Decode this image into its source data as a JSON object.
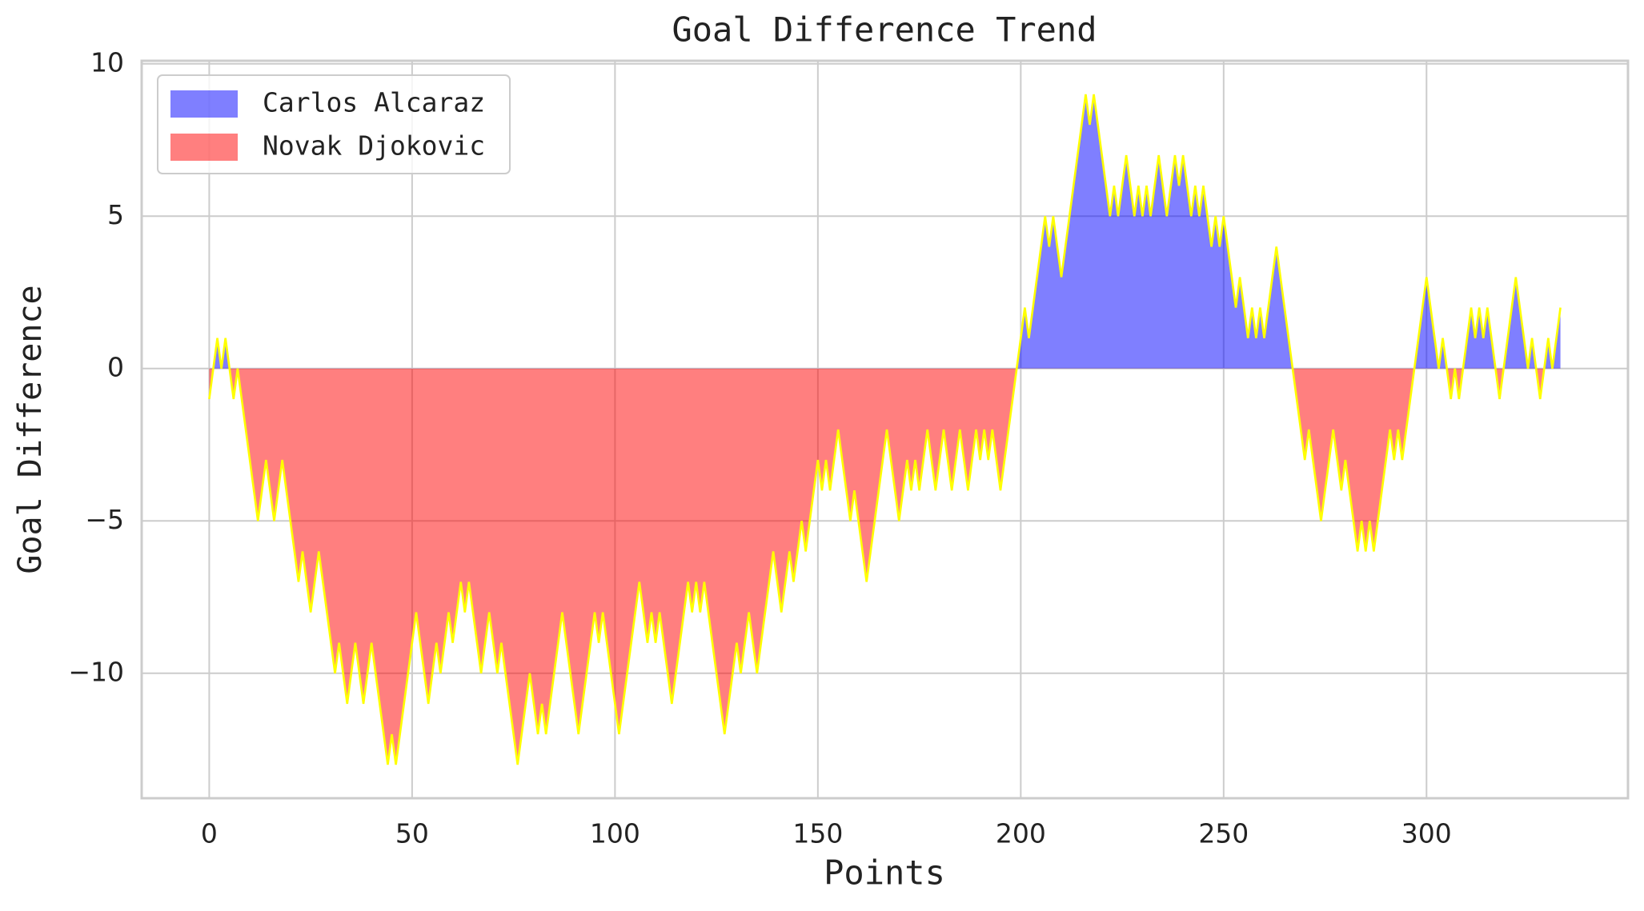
{
  "chart_data": {
    "type": "area",
    "title": "Goal Difference Trend",
    "xlabel": "Points",
    "ylabel": "Goal Difference",
    "x": [
      0,
      2,
      3,
      4,
      6,
      7,
      12,
      14,
      16,
      18,
      22,
      23,
      25,
      27,
      31,
      32,
      34,
      36,
      38,
      40,
      44,
      45,
      46,
      51,
      54,
      56,
      57,
      59,
      60,
      62,
      63,
      64,
      67,
      69,
      71,
      72,
      76,
      79,
      81,
      82,
      83,
      87,
      91,
      95,
      96,
      97,
      101,
      106,
      108,
      109,
      110,
      111,
      114,
      118,
      119,
      120,
      121,
      122,
      127,
      130,
      131,
      133,
      135,
      139,
      141,
      143,
      144,
      146,
      147,
      150,
      151,
      152,
      153,
      155,
      158,
      159,
      162,
      167,
      170,
      172,
      173,
      174,
      175,
      177,
      179,
      181,
      183,
      185,
      187,
      189,
      190,
      191,
      192,
      193,
      195,
      199,
      201,
      202,
      206,
      207,
      208,
      210,
      216,
      217,
      218,
      222,
      223,
      224,
      226,
      228,
      229,
      230,
      231,
      232,
      234,
      236,
      238,
      239,
      240,
      242,
      243,
      244,
      245,
      247,
      248,
      249,
      250,
      253,
      254,
      256,
      257,
      258,
      259,
      260,
      263,
      270,
      271,
      274,
      277,
      279,
      280,
      283,
      284,
      285,
      286,
      287,
      291,
      292,
      293,
      294,
      300,
      303,
      304,
      306,
      307,
      308,
      311,
      312,
      313,
      314,
      315,
      318,
      322,
      325,
      326,
      328,
      330,
      331,
      333
    ],
    "values": [
      -1,
      1,
      0,
      1,
      -1,
      0,
      -5,
      -3,
      -5,
      -3,
      -7,
      -6,
      -8,
      -6,
      -10,
      -9,
      -11,
      -9,
      -11,
      -9,
      -13,
      -12,
      -13,
      -8,
      -11,
      -9,
      -10,
      -8,
      -9,
      -7,
      -8,
      -7,
      -10,
      -8,
      -10,
      -9,
      -13,
      -10,
      -12,
      -11,
      -12,
      -8,
      -12,
      -8,
      -9,
      -8,
      -12,
      -7,
      -9,
      -8,
      -9,
      -8,
      -11,
      -7,
      -8,
      -7,
      -8,
      -7,
      -12,
      -9,
      -10,
      -8,
      -10,
      -6,
      -8,
      -6,
      -7,
      -5,
      -6,
      -3,
      -4,
      -3,
      -4,
      -2,
      -5,
      -4,
      -7,
      -2,
      -5,
      -3,
      -4,
      -3,
      -4,
      -2,
      -4,
      -2,
      -4,
      -2,
      -4,
      -2,
      -3,
      -2,
      -3,
      -2,
      -4,
      0,
      2,
      1,
      5,
      4,
      5,
      3,
      9,
      8,
      9,
      5,
      6,
      5,
      7,
      5,
      6,
      5,
      6,
      5,
      7,
      5,
      7,
      6,
      7,
      5,
      6,
      5,
      6,
      4,
      5,
      4,
      5,
      2,
      3,
      1,
      2,
      1,
      2,
      1,
      4,
      -3,
      -2,
      -5,
      -2,
      -4,
      -3,
      -6,
      -5,
      -6,
      -5,
      -6,
      -2,
      -3,
      -2,
      -3,
      3,
      0,
      1,
      -1,
      0,
      -1,
      2,
      1,
      2,
      1,
      2,
      -1,
      3,
      0,
      1,
      -1,
      1,
      0,
      2
    ],
    "line_color": "#ffff00",
    "legend": [
      {
        "name": "Carlos Alcaraz",
        "color": "#0000ff"
      },
      {
        "name": "Novak Djokovic",
        "color": "#ff0000"
      }
    ],
    "legend_position": "upper left",
    "xlim": [
      -16.65,
      349.65
    ],
    "xticks": [
      0,
      50,
      100,
      150,
      200,
      250,
      300
    ],
    "ylim": [
      -14.1,
      10.1
    ],
    "yticks": [
      {
        "value": -10,
        "label": "−10"
      },
      {
        "value": -5,
        "label": "−5"
      },
      0,
      5,
      10
    ],
    "grid": true
  }
}
